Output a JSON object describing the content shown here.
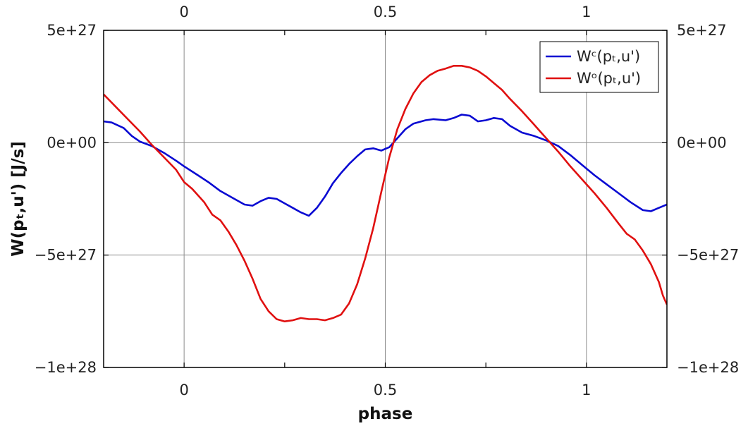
{
  "chart_data": {
    "type": "line",
    "title": "",
    "xlabel": "phase",
    "ylabel": "W(pₜ,u') [J/s]",
    "xlim": [
      -0.2,
      1.2
    ],
    "ylim": [
      -1e+28,
      5e+27
    ],
    "grid": true,
    "legend_placement": "top-right",
    "x_ticks": [
      {
        "value": 0,
        "label": "0"
      },
      {
        "value": 0.5,
        "label": "0.5"
      },
      {
        "value": 1,
        "label": "1"
      }
    ],
    "y_ticks": [
      {
        "value": 5e+27,
        "label": "5e+27"
      },
      {
        "value": 0,
        "label": "0e+00"
      },
      {
        "value": -5e+27,
        "label": "−5e+27"
      },
      {
        "value": -1e+28,
        "label": "−1e+28"
      }
    ],
    "series": [
      {
        "name": "Wᶜ(pₜ,u')",
        "color": "#0a0ad2",
        "points": [
          [
            -0.2,
            9.5e+26
          ],
          [
            -0.18,
            9e+26
          ],
          [
            -0.15,
            6.5e+26
          ],
          [
            -0.13,
            3e+26
          ],
          [
            -0.11,
            5e+25
          ],
          [
            -0.08,
            -1.5e+26
          ],
          [
            -0.05,
            -4.5e+26
          ],
          [
            -0.02,
            -8e+26
          ],
          [
            0.0,
            -1.05e+27
          ],
          [
            0.03,
            -1.4e+27
          ],
          [
            0.06,
            -1.75e+27
          ],
          [
            0.09,
            -2.15e+27
          ],
          [
            0.12,
            -2.45e+27
          ],
          [
            0.15,
            -2.75e+27
          ],
          [
            0.17,
            -2.8e+27
          ],
          [
            0.19,
            -2.6e+27
          ],
          [
            0.21,
            -2.45e+27
          ],
          [
            0.23,
            -2.5e+27
          ],
          [
            0.25,
            -2.7e+27
          ],
          [
            0.27,
            -2.9e+27
          ],
          [
            0.29,
            -3.1e+27
          ],
          [
            0.31,
            -3.25e+27
          ],
          [
            0.33,
            -2.9e+27
          ],
          [
            0.35,
            -2.4e+27
          ],
          [
            0.37,
            -1.8e+27
          ],
          [
            0.39,
            -1.35e+27
          ],
          [
            0.41,
            -9.5e+26
          ],
          [
            0.43,
            -6e+26
          ],
          [
            0.45,
            -3e+26
          ],
          [
            0.47,
            -2.5e+26
          ],
          [
            0.49,
            -3.5e+26
          ],
          [
            0.51,
            -2e+26
          ],
          [
            0.53,
            2e+26
          ],
          [
            0.55,
            6e+26
          ],
          [
            0.57,
            8.5e+26
          ],
          [
            0.6,
            1e+27
          ],
          [
            0.62,
            1.05e+27
          ],
          [
            0.65,
            1e+27
          ],
          [
            0.67,
            1.1e+27
          ],
          [
            0.69,
            1.25e+27
          ],
          [
            0.71,
            1.2e+27
          ],
          [
            0.73,
            9.5e+26
          ],
          [
            0.75,
            1e+27
          ],
          [
            0.77,
            1.1e+27
          ],
          [
            0.79,
            1.05e+27
          ],
          [
            0.81,
            7.5e+26
          ],
          [
            0.84,
            4.5e+26
          ],
          [
            0.87,
            3e+26
          ],
          [
            0.9,
            1e+26
          ],
          [
            0.93,
            -1.5e+26
          ],
          [
            0.96,
            -5.5e+26
          ],
          [
            0.99,
            -1e+27
          ],
          [
            1.02,
            -1.45e+27
          ],
          [
            1.05,
            -1.85e+27
          ],
          [
            1.08,
            -2.25e+27
          ],
          [
            1.11,
            -2.65e+27
          ],
          [
            1.14,
            -3e+27
          ],
          [
            1.16,
            -3.05e+27
          ],
          [
            1.18,
            -2.9e+27
          ],
          [
            1.2,
            -2.75e+27
          ]
        ]
      },
      {
        "name": "Wᵒ(pₜ,u')",
        "color": "#e01010",
        "points": [
          [
            -0.2,
            2.15e+27
          ],
          [
            -0.17,
            1.6e+27
          ],
          [
            -0.14,
            1.05e+27
          ],
          [
            -0.11,
            5e+26
          ],
          [
            -0.08,
            -1e+26
          ],
          [
            -0.05,
            -6.5e+26
          ],
          [
            -0.02,
            -1.2e+27
          ],
          [
            0.0,
            -1.75e+27
          ],
          [
            0.02,
            -2.05e+27
          ],
          [
            0.05,
            -2.65e+27
          ],
          [
            0.07,
            -3.2e+27
          ],
          [
            0.09,
            -3.45e+27
          ],
          [
            0.11,
            -3.95e+27
          ],
          [
            0.13,
            -4.55e+27
          ],
          [
            0.15,
            -5.25e+27
          ],
          [
            0.17,
            -6.05e+27
          ],
          [
            0.19,
            -6.95e+27
          ],
          [
            0.21,
            -7.5e+27
          ],
          [
            0.23,
            -7.85e+27
          ],
          [
            0.25,
            -7.95e+27
          ],
          [
            0.27,
            -7.9e+27
          ],
          [
            0.29,
            -7.8e+27
          ],
          [
            0.31,
            -7.85e+27
          ],
          [
            0.33,
            -7.85e+27
          ],
          [
            0.35,
            -7.9e+27
          ],
          [
            0.37,
            -7.8e+27
          ],
          [
            0.39,
            -7.65e+27
          ],
          [
            0.41,
            -7.15e+27
          ],
          [
            0.43,
            -6.3e+27
          ],
          [
            0.45,
            -5.15e+27
          ],
          [
            0.47,
            -3.8e+27
          ],
          [
            0.49,
            -2.2e+27
          ],
          [
            0.51,
            -6.5e+26
          ],
          [
            0.53,
            6e+26
          ],
          [
            0.55,
            1.5e+27
          ],
          [
            0.57,
            2.2e+27
          ],
          [
            0.59,
            2.7e+27
          ],
          [
            0.61,
            3e+27
          ],
          [
            0.63,
            3.2e+27
          ],
          [
            0.65,
            3.3e+27
          ],
          [
            0.67,
            3.42e+27
          ],
          [
            0.69,
            3.42e+27
          ],
          [
            0.71,
            3.35e+27
          ],
          [
            0.73,
            3.2e+27
          ],
          [
            0.75,
            2.95e+27
          ],
          [
            0.77,
            2.65e+27
          ],
          [
            0.79,
            2.35e+27
          ],
          [
            0.81,
            1.95e+27
          ],
          [
            0.84,
            1.4e+27
          ],
          [
            0.87,
            8e+26
          ],
          [
            0.9,
            2e+26
          ],
          [
            0.93,
            -4e+26
          ],
          [
            0.96,
            -1.05e+27
          ],
          [
            0.99,
            -1.65e+27
          ],
          [
            1.02,
            -2.25e+27
          ],
          [
            1.05,
            -2.9e+27
          ],
          [
            1.08,
            -3.6e+27
          ],
          [
            1.1,
            -4.05e+27
          ],
          [
            1.12,
            -4.3e+27
          ],
          [
            1.14,
            -4.8e+27
          ],
          [
            1.16,
            -5.4e+27
          ],
          [
            1.18,
            -6.2e+27
          ],
          [
            1.19,
            -6.8e+27
          ],
          [
            1.2,
            -7.2e+27
          ]
        ]
      }
    ]
  }
}
